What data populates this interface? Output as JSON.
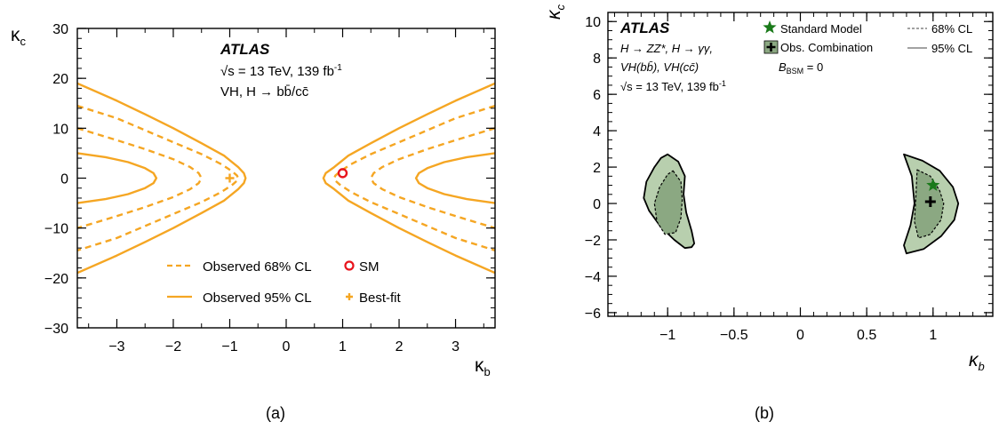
{
  "chart_data": [
    {
      "type": "line",
      "caption": "(a)",
      "xlabel": "κ",
      "xlabel_sub": "b",
      "ylabel": "κ",
      "ylabel_sub": "c",
      "xlim": [
        -3.7,
        3.7
      ],
      "ylim": [
        -30,
        30
      ],
      "xticks": [
        -3,
        -2,
        -1,
        0,
        1,
        2,
        3
      ],
      "xtick_labels": [
        "−3",
        "−2",
        "−1",
        "0",
        "1",
        "2",
        "3"
      ],
      "yticks": [
        -30,
        -20,
        -10,
        0,
        10,
        20,
        30
      ],
      "ytick_labels": [
        "−30",
        "−20",
        "−10",
        "0",
        "10",
        "20",
        "30"
      ],
      "annotation": {
        "experiment": "ATLAS",
        "energy_prefix": "√s = 13 TeV, 139 fb",
        "energy_sup": "-1",
        "channel": "VH, H → bb̄/cc̄"
      },
      "legend": {
        "placement": "bottom-center",
        "entries": [
          {
            "label": "Observed 68% CL",
            "style": "dashed-line"
          },
          {
            "label": "SM",
            "style": "open-circle"
          },
          {
            "label": "Observed 95% CL",
            "style": "solid-line"
          },
          {
            "label": "Best-fit",
            "style": "plus-marker"
          }
        ]
      },
      "colors": {
        "contour": "#f5a623",
        "sm": "#e8141c"
      },
      "series": [
        {
          "label": "Observed 95% CL",
          "style": "solid",
          "branches": [
            {
              "x": [
                -3.7,
                -3.0,
                -2.5,
                -2.0,
                -1.5,
                -1.1,
                -0.85,
                -0.75,
                -0.72,
                -0.75,
                -0.85,
                -1.1,
                -1.5,
                -2.0,
                -2.5,
                -3.0,
                -3.7
              ],
              "y": [
                19,
                15.5,
                12.8,
                10,
                7,
                4.5,
                2.2,
                1,
                0,
                -1,
                -2.2,
                -4.5,
                -7,
                -10,
                -12.8,
                -15.5,
                -19
              ]
            },
            {
              "x": [
                3.7,
                3.0,
                2.5,
                2.0,
                1.5,
                1.1,
                0.85,
                0.7,
                0.66,
                0.7,
                0.85,
                1.1,
                1.5,
                2.0,
                2.5,
                3.0,
                3.7
              ],
              "y": [
                19,
                15.5,
                12.8,
                10,
                7,
                4.5,
                2.2,
                1,
                0,
                -1,
                -2.2,
                -4.5,
                -7,
                -10,
                -12.8,
                -15.5,
                -19
              ]
            },
            {
              "x": [
                -3.7,
                -3.2,
                -2.8,
                -2.5,
                -2.35,
                -2.3,
                -2.35,
                -2.5,
                -2.8,
                -3.2,
                -3.7
              ],
              "y": [
                5,
                4.2,
                3.2,
                2.0,
                1.0,
                0,
                -1.0,
                -2.0,
                -3.2,
                -4.2,
                -5
              ]
            },
            {
              "x": [
                3.7,
                3.2,
                2.8,
                2.5,
                2.35,
                2.3,
                2.35,
                2.5,
                2.8,
                3.2,
                3.7
              ],
              "y": [
                5,
                4.2,
                3.2,
                2.0,
                1.0,
                0,
                -1.0,
                -2.0,
                -3.2,
                -4.2,
                -5
              ]
            }
          ]
        },
        {
          "label": "Observed 68% CL",
          "style": "dashed",
          "branches": [
            {
              "x": [
                -3.7,
                -3.0,
                -2.5,
                -2.0,
                -1.5,
                -1.15,
                -0.95,
                -0.87,
                -0.85,
                -0.87,
                -0.95,
                -1.15,
                -1.5,
                -2.0,
                -2.5,
                -3.0,
                -3.7
              ],
              "y": [
                14.5,
                12,
                9.6,
                7.2,
                4.8,
                2.8,
                1.3,
                0.5,
                0,
                -0.5,
                -1.3,
                -2.8,
                -4.8,
                -7.2,
                -9.6,
                -12,
                -14.5
              ]
            },
            {
              "x": [
                3.7,
                3.0,
                2.5,
                2.0,
                1.5,
                1.15,
                0.95,
                0.87,
                0.85,
                0.87,
                0.95,
                1.15,
                1.5,
                2.0,
                2.5,
                3.0,
                3.7
              ],
              "y": [
                14.5,
                12,
                9.6,
                7.2,
                4.8,
                2.8,
                1.3,
                0.5,
                0,
                -0.5,
                -1.3,
                -2.8,
                -4.8,
                -7.2,
                -9.6,
                -12,
                -14.5
              ]
            },
            {
              "x": [
                -3.7,
                -3.0,
                -2.5,
                -2.0,
                -1.7,
                -1.55,
                -1.5,
                -1.55,
                -1.7,
                -2.0,
                -2.5,
                -3.0,
                -3.7
              ],
              "y": [
                10,
                7.6,
                5.8,
                3.8,
                2.2,
                1.0,
                0,
                -1.0,
                -2.2,
                -3.8,
                -5.8,
                -7.6,
                -10
              ]
            },
            {
              "x": [
                3.7,
                3.0,
                2.5,
                2.0,
                1.7,
                1.55,
                1.5,
                1.55,
                1.7,
                2.0,
                2.5,
                3.0,
                3.7
              ],
              "y": [
                10,
                7.6,
                5.8,
                3.8,
                2.2,
                1.0,
                0,
                -1.0,
                -2.2,
                -3.8,
                -5.8,
                -7.6,
                -10
              ]
            }
          ]
        }
      ],
      "points": [
        {
          "label": "SM",
          "x": 1,
          "y": 1,
          "marker": "open-circle"
        },
        {
          "label": "Best-fit",
          "x": -1,
          "y": 0,
          "marker": "plus"
        }
      ]
    },
    {
      "type": "area",
      "caption": "(b)",
      "xlabel": "κ",
      "xlabel_sub": "b",
      "ylabel": "κ",
      "ylabel_sub": "c",
      "xlim": [
        -1.45,
        1.45
      ],
      "ylim": [
        -6.2,
        10.5
      ],
      "xticks": [
        -1,
        -0.5,
        0,
        0.5,
        1
      ],
      "xtick_labels": [
        "−1",
        "−0.5",
        "0",
        "0.5",
        "1"
      ],
      "yticks": [
        -6,
        -4,
        -2,
        0,
        2,
        4,
        6,
        8,
        10
      ],
      "ytick_labels": [
        "−6",
        "−4",
        "−2",
        "0",
        "2",
        "4",
        "6",
        "8",
        "10"
      ],
      "annotation": {
        "experiment": "ATLAS",
        "line1": "H → ZZ*, H → γγ,",
        "line2": "VH(bb̄), VH(cc̄)",
        "energy_prefix": "√s = 13 TeV, 139 fb",
        "energy_sup": "-1",
        "bsm_label": "B",
        "bsm_sub": "BSM",
        "bsm_value": " = 0"
      },
      "legend": {
        "placement": "top-right",
        "entries": [
          {
            "label": "Standard Model",
            "style": "star"
          },
          {
            "label": "68% CL",
            "style": "dashed-line"
          },
          {
            "label": "Obs. Combination",
            "style": "filled-box-plus"
          },
          {
            "label": "95% CL",
            "style": "solid-line"
          }
        ]
      },
      "colors": {
        "fill_95": "#b8cfae",
        "fill_68": "#8ba882",
        "star": "#1a7a1a",
        "best_fit": "#000000"
      },
      "regions": [
        {
          "label": "95% CL",
          "style": "solid",
          "polygons": [
            {
              "x": [
                -1.0,
                -0.92,
                -0.87,
                -0.88,
                -0.86,
                -0.82,
                -0.8,
                -0.82,
                -0.87,
                -0.95,
                -1.05,
                -1.14,
                -1.18,
                -1.16,
                -1.1,
                -1.05,
                -1.0
              ],
              "y": [
                2.7,
                2.3,
                1.5,
                0.5,
                -0.5,
                -1.5,
                -2.2,
                -2.4,
                -2.45,
                -2.0,
                -1.3,
                -0.4,
                0.3,
                1.2,
                2.0,
                2.5,
                2.7
              ]
            },
            {
              "x": [
                0.78,
                0.92,
                1.05,
                1.15,
                1.19,
                1.16,
                1.06,
                0.93,
                0.8,
                0.78,
                0.83,
                0.86,
                0.84,
                0.78
              ],
              "y": [
                2.7,
                2.35,
                1.8,
                0.9,
                0.0,
                -0.9,
                -1.8,
                -2.5,
                -2.75,
                -2.3,
                -1.2,
                0.0,
                1.5,
                2.7
              ]
            }
          ]
        },
        {
          "label": "68% CL",
          "style": "dashed",
          "polygons": [
            {
              "x": [
                -0.96,
                -0.9,
                -0.89,
                -0.9,
                -0.94,
                -1.02,
                -1.08,
                -1.1,
                -1.06,
                -1.0,
                -0.96
              ],
              "y": [
                1.8,
                1.2,
                0.2,
                -0.8,
                -1.6,
                -1.7,
                -1.0,
                0.0,
                0.9,
                1.6,
                1.8
              ]
            },
            {
              "x": [
                0.88,
                0.98,
                1.05,
                1.08,
                1.06,
                0.98,
                0.89,
                0.86,
                0.87,
                0.88
              ],
              "y": [
                1.85,
                1.5,
                0.7,
                0.0,
                -0.9,
                -1.7,
                -1.9,
                -1.0,
                0.3,
                1.85
              ]
            }
          ]
        }
      ],
      "points": [
        {
          "label": "Standard Model",
          "x": 1.0,
          "y": 1.0,
          "marker": "star"
        },
        {
          "label": "Obs. Combination",
          "x": 0.98,
          "y": 0.1,
          "marker": "plus"
        }
      ]
    }
  ]
}
